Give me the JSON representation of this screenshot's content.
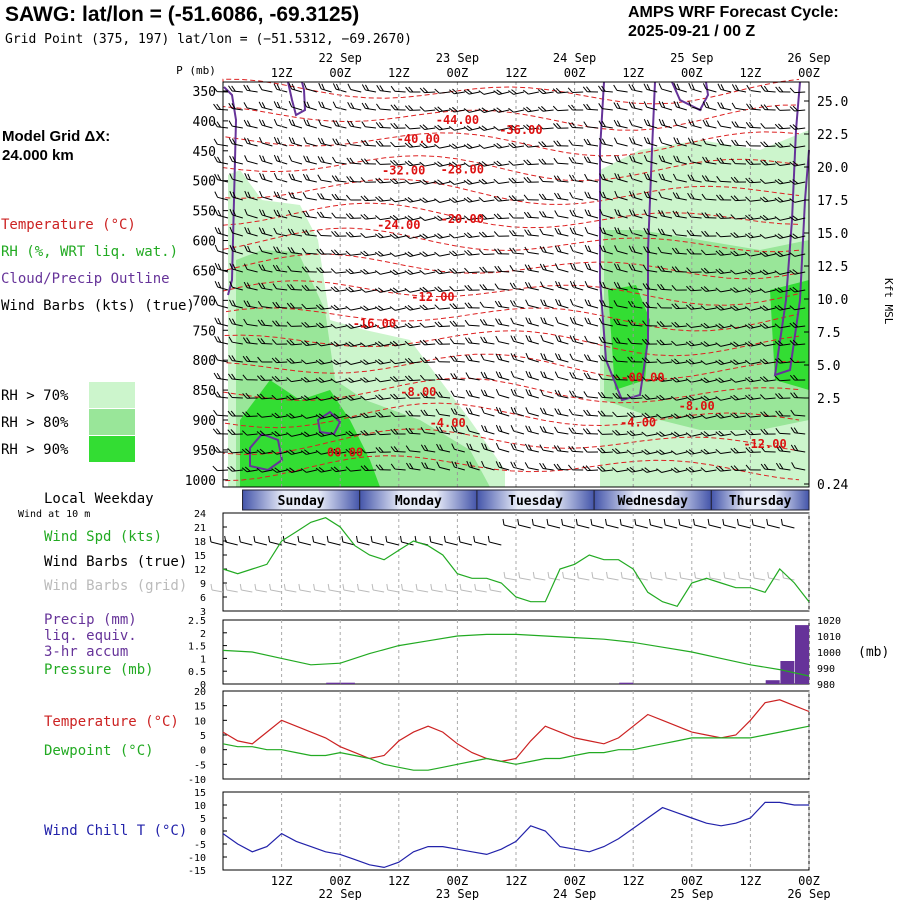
{
  "header": {
    "title": "SAWG:  lat/lon = (-51.6086, -69.3125)",
    "subtitle": "Grid Point (375, 197) lat/lon = (−51.5312, −69.2670)",
    "cycle_line1": "AMPS WRF Forecast Cycle:",
    "cycle_line2": "2025-09-21 / 00  Z"
  },
  "sidebar": {
    "grid_label": "Model Grid ΔX:",
    "grid_value": " 24.000 km",
    "legend": [
      {
        "text": "Temperature (°C)",
        "color": "#cc2222"
      },
      {
        "text": "RH (%, WRT liq. wat.)",
        "color": "#22aa22"
      },
      {
        "text": "Cloud/Precip Outline",
        "color": "#663399"
      },
      {
        "text": "Wind Barbs (kts) (true)",
        "color": "#000000"
      }
    ],
    "rh_levels": [
      {
        "text": "RH > 70%",
        "color": "#ccf5cc"
      },
      {
        "text": "RH > 80%",
        "color": "#99e699"
      },
      {
        "text": "RH > 90%",
        "color": "#33dd33"
      }
    ],
    "weekday_label": "Local Weekday",
    "wind10_label": "Wind at 10 m",
    "wind_panel_labels": [
      {
        "text": "Wind Spd (kts)",
        "color": "#22aa22"
      },
      {
        "text": "Wind Barbs (true)",
        "color": "#000000"
      },
      {
        "text": "Wind Barbs (grid)",
        "color": "#bbbbbb"
      }
    ],
    "precip_labels": [
      {
        "text": "Precip (mm)",
        "color": "#663399"
      },
      {
        "text": "liq. equiv.",
        "color": "#663399"
      },
      {
        "text": "3-hr accum",
        "color": "#663399"
      },
      {
        "text": "Pressure (mb)",
        "color": "#22aa22"
      }
    ],
    "temp_labels": [
      {
        "text": "Temperature (°C)",
        "color": "#cc2222"
      },
      {
        "text": "Dewpoint (°C)",
        "color": "#22aa22"
      }
    ],
    "chill_label": {
      "text": "Wind Chill T (°C)",
      "color": "#2222aa"
    }
  },
  "chart_data": [
    {
      "type": "heatmap",
      "name": "cross-section",
      "time_ticks": [
        "12Z",
        "00Z",
        "12Z",
        "00Z",
        "12Z",
        "00Z",
        "12Z",
        "00Z",
        "12Z",
        "00Z"
      ],
      "date_ticks": [
        {
          "label": "22 Sep",
          "hour": 24
        },
        {
          "label": "23 Sep",
          "hour": 48
        },
        {
          "label": "24 Sep",
          "hour": 72
        },
        {
          "label": "25 Sep",
          "hour": 96
        },
        {
          "label": "26 Sep",
          "hour": 120
        }
      ],
      "x_range_hours": [
        0,
        120
      ],
      "pressure_label": "P (mb)",
      "pressure_ticks": [
        350,
        400,
        450,
        500,
        550,
        600,
        650,
        700,
        750,
        800,
        850,
        900,
        950,
        1000
      ],
      "height_label": "Kft MSL",
      "height_ticks": [
        "25.0",
        "22.5",
        "20.0",
        "17.5",
        "15.0",
        "12.5",
        "10.0",
        "7.5",
        "5.0",
        "2.5",
        "0.24"
      ],
      "temperature_contours": [
        {
          "label": "-44.00",
          "hour": 48,
          "p": 405
        },
        {
          "label": "-40.00",
          "hour": 40,
          "p": 437
        },
        {
          "label": "-36.00",
          "hour": 61,
          "p": 422
        },
        {
          "label": "-32.00",
          "hour": 37,
          "p": 490
        },
        {
          "label": "-28.00",
          "hour": 49,
          "p": 488
        },
        {
          "label": "-24.00",
          "hour": 36,
          "p": 581
        },
        {
          "label": "-20.00",
          "hour": 49,
          "p": 571
        },
        {
          "label": "-16.00",
          "hour": 31,
          "p": 745
        },
        {
          "label": "-12.00",
          "hour": 43,
          "p": 701
        },
        {
          "label": "-8.00",
          "hour": 40,
          "p": 860
        },
        {
          "label": "-4.00",
          "hour": 46,
          "p": 912
        },
        {
          "label": "00.00",
          "hour": 25,
          "p": 961
        },
        {
          "label": "-4.00",
          "hour": 85,
          "p": 911
        },
        {
          "label": "-00.00",
          "hour": 86,
          "p": 836
        },
        {
          "label": "-8.00",
          "hour": 97,
          "p": 883
        },
        {
          "label": "-12.00",
          "hour": 111,
          "p": 947
        }
      ],
      "wind_barbs_kts_approx": "30-45 kt westerly aloft, 10-25 kt near surface"
    },
    {
      "type": "line",
      "name": "surface-wind",
      "weekdays": [
        "Sunday",
        "Monday",
        "Tuesday",
        "Wednesday",
        "Thursday"
      ],
      "ylim": [
        3,
        24
      ],
      "yticks": [
        3,
        6,
        9,
        12,
        15,
        18,
        21,
        24
      ],
      "x": [
        0,
        3,
        6,
        9,
        12,
        15,
        18,
        21,
        24,
        27,
        30,
        33,
        36,
        39,
        42,
        45,
        48,
        51,
        54,
        57,
        60,
        63,
        66,
        69,
        72,
        75,
        78,
        81,
        84,
        87,
        90,
        93,
        96,
        99,
        102,
        105,
        108,
        111,
        114,
        117,
        120
      ],
      "series": [
        {
          "name": "Wind Spd (kts)",
          "color": "#22aa22",
          "values": [
            12,
            11,
            12,
            13,
            18,
            20,
            22,
            23,
            21,
            17,
            15,
            14,
            16,
            18,
            17,
            15,
            11,
            10,
            10,
            9,
            6,
            5,
            5,
            12,
            13,
            15,
            14,
            14,
            12,
            7,
            5,
            4,
            9,
            10,
            9,
            8,
            8,
            7,
            12,
            9,
            5
          ]
        }
      ]
    },
    {
      "type": "bar",
      "name": "precip-pressure",
      "ylim": [
        0,
        2.5
      ],
      "yticks": [
        0.0,
        0.5,
        1.0,
        1.5,
        2.0,
        2.5
      ],
      "y2lim": [
        980,
        1020
      ],
      "y2ticks": [
        980,
        990,
        1000,
        1010,
        1020
      ],
      "y2label": "(mb)",
      "precip": [
        {
          "hour": 24,
          "value": 0.05
        },
        {
          "hour": 27,
          "value": 0.05
        },
        {
          "hour": 84,
          "value": 0.05
        },
        {
          "hour": 114,
          "value": 0.15
        },
        {
          "hour": 117,
          "value": 0.9
        },
        {
          "hour": 120,
          "value": 2.3
        }
      ],
      "pressure": {
        "x": [
          0,
          6,
          12,
          18,
          24,
          30,
          36,
          42,
          48,
          54,
          60,
          66,
          72,
          78,
          84,
          90,
          96,
          102,
          108,
          114,
          120
        ],
        "values": [
          1001,
          1000,
          996,
          992,
          993,
          999,
          1004,
          1007,
          1010,
          1011,
          1011,
          1010,
          1009,
          1008,
          1006,
          1003,
          1000,
          996,
          992,
          989,
          985
        ]
      }
    },
    {
      "type": "line",
      "name": "temperature-dewpoint",
      "ylim": [
        -10,
        20
      ],
      "yticks": [
        -10,
        -5,
        0,
        5,
        10,
        15,
        20
      ],
      "x": [
        0,
        3,
        6,
        9,
        12,
        15,
        18,
        21,
        24,
        27,
        30,
        33,
        36,
        39,
        42,
        45,
        48,
        51,
        54,
        57,
        60,
        63,
        66,
        69,
        72,
        75,
        78,
        81,
        84,
        87,
        90,
        93,
        96,
        99,
        102,
        105,
        108,
        111,
        114,
        117,
        120
      ],
      "series": [
        {
          "name": "Temperature (°C)",
          "color": "#cc2222",
          "values": [
            6,
            3,
            2,
            6,
            10,
            8,
            6,
            4,
            1,
            -1,
            -3,
            -2,
            3,
            6,
            8,
            6,
            2,
            -1,
            -3,
            -4,
            -3,
            3,
            8,
            6,
            4,
            3,
            2,
            4,
            8,
            12,
            10,
            8,
            6,
            5,
            4,
            5,
            10,
            16,
            17,
            15,
            13
          ]
        },
        {
          "name": "Dewpoint (°C)",
          "color": "#22aa22",
          "values": [
            2,
            1,
            1,
            0,
            0,
            -1,
            -2,
            -2,
            -1,
            -2,
            -3,
            -5,
            -6,
            -7,
            -7,
            -6,
            -5,
            -4,
            -3,
            -4,
            -5,
            -4,
            -3,
            -3,
            -2,
            -1,
            -1,
            0,
            0,
            1,
            2,
            3,
            4,
            4,
            4,
            4,
            4,
            5,
            6,
            7,
            8
          ]
        }
      ]
    },
    {
      "type": "line",
      "name": "wind-chill",
      "ylim": [
        -15,
        15
      ],
      "yticks": [
        -15,
        -10,
        -5,
        0,
        5,
        10,
        15
      ],
      "x": [
        0,
        3,
        6,
        9,
        12,
        15,
        18,
        21,
        24,
        27,
        30,
        33,
        36,
        39,
        42,
        45,
        48,
        51,
        54,
        57,
        60,
        63,
        66,
        69,
        72,
        75,
        78,
        81,
        84,
        87,
        90,
        93,
        96,
        99,
        102,
        105,
        108,
        111,
        114,
        117,
        120
      ],
      "series": [
        {
          "name": "Wind Chill T (°C)",
          "color": "#2222aa",
          "values": [
            -1,
            -5,
            -8,
            -6,
            -1,
            -4,
            -6,
            -8,
            -9,
            -11,
            -13,
            -14,
            -12,
            -8,
            -6,
            -6,
            -7,
            -8,
            -9,
            -7,
            -4,
            2,
            0,
            -6,
            -7,
            -8,
            -6,
            -3,
            1,
            5,
            9,
            7,
            5,
            3,
            2,
            3,
            5,
            11,
            11,
            10,
            10
          ]
        }
      ]
    }
  ]
}
